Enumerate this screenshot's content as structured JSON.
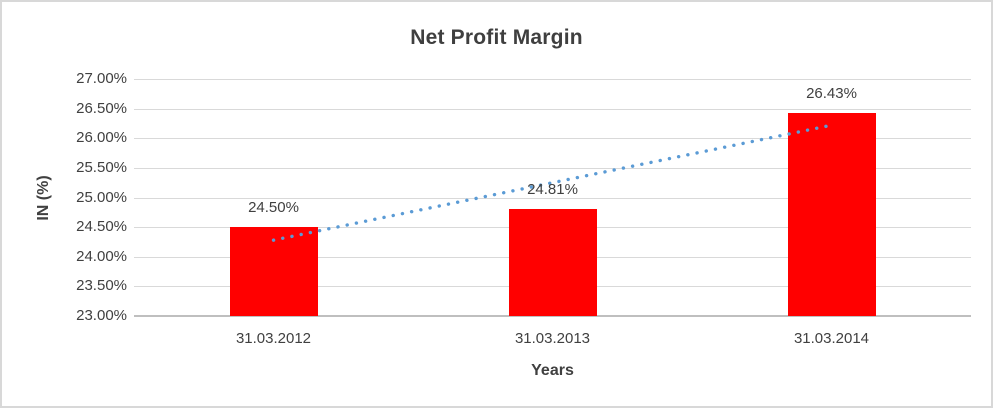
{
  "chart_data": {
    "type": "bar",
    "title": "Net Profit Margin",
    "categories": [
      "31.03.2012",
      "31.03.2013",
      "31.03.2014"
    ],
    "values": [
      24.5,
      24.81,
      26.43
    ],
    "value_labels": [
      "24.50%",
      "24.81%",
      "26.43%"
    ],
    "xlabel": "Years",
    "ylabel": "IN (%)",
    "ylim": [
      23.0,
      27.0
    ],
    "ytick_step": 0.5,
    "ytick_labels_top_to_bottom": [
      "27.00%",
      "26.50%",
      "26.00%",
      "25.50%",
      "25.00%",
      "24.50%",
      "24.00%",
      "23.50%",
      "23.00%"
    ],
    "grid": true,
    "legend": "none",
    "bar_color": "#ff0000",
    "gridline_color": "#d9d9d9",
    "axis_line_color": "#bfbfbf",
    "text_color": "#404040",
    "trendline": {
      "type": "linear",
      "style": "dotted",
      "color": "#5b9bd5",
      "start": {
        "category_index": 0,
        "value": 24.28
      },
      "end": {
        "category_index": 2,
        "value": 26.21
      }
    }
  }
}
